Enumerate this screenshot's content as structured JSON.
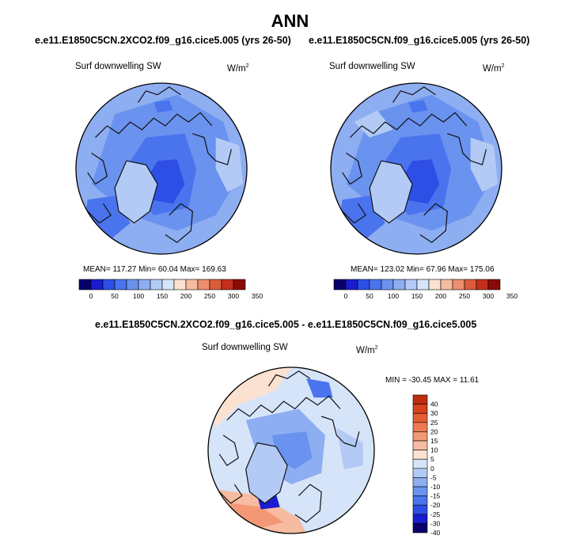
{
  "page": {
    "title": "ANN"
  },
  "colors": {
    "abs_scale": [
      "#08006b",
      "#1a1ccf",
      "#2e4fe6",
      "#4a74ee",
      "#6a92ef",
      "#8eaef2",
      "#b2caf5",
      "#d6e4fa",
      "#fbe2d0",
      "#f6bba0",
      "#ec8f6e",
      "#dc5c3c",
      "#c32f1a",
      "#8b0a05"
    ],
    "diff_scale": [
      "#08006b",
      "#1a1ccf",
      "#2e4fe6",
      "#4a74ee",
      "#6a92ef",
      "#8eaef2",
      "#b2caf5",
      "#d6e4fa",
      "#fbe2d0",
      "#f6bba0",
      "#f39875",
      "#ef7a52",
      "#e45d30",
      "#d8431c",
      "#bf2e0e"
    ]
  },
  "chart_data": [
    {
      "type": "heatmap",
      "projection": "north-polar-stereographic",
      "title": "e.e11.E1850C5CN.2XCO2.f09_g16.cice5.005 (yrs 26-50)",
      "variable": "Surf downwelling SW",
      "units": "W/m²",
      "stats_text": "MEAN= 117.27  Min=  60.04  Max= 169.63",
      "mean": 117.27,
      "min": 60.04,
      "max": 169.63,
      "colorbar_ticks": [
        "0",
        "50",
        "100",
        "150",
        "200",
        "250",
        "300",
        "350"
      ],
      "colorbar_levels": [
        0,
        25,
        50,
        75,
        100,
        125,
        150,
        175,
        200,
        225,
        250,
        275,
        300,
        325,
        350
      ]
    },
    {
      "type": "heatmap",
      "projection": "north-polar-stereographic",
      "title": "e.e11.E1850C5CN.f09_g16.cice5.005 (yrs 26-50)",
      "variable": "Surf downwelling SW",
      "units": "W/m²",
      "stats_text": "MEAN= 123.02  Min=  67.96  Max= 175.06",
      "mean": 123.02,
      "min": 67.96,
      "max": 175.06,
      "colorbar_ticks": [
        "0",
        "50",
        "100",
        "150",
        "200",
        "250",
        "300",
        "350"
      ],
      "colorbar_levels": [
        0,
        25,
        50,
        75,
        100,
        125,
        150,
        175,
        200,
        225,
        250,
        275,
        300,
        325,
        350
      ]
    },
    {
      "type": "heatmap",
      "projection": "north-polar-stereographic",
      "title": "e.e11.E1850C5CN.2XCO2.f09_g16.cice5.005 - e.e11.E1850C5CN.f09_g16.cice5.005",
      "variable": "Surf downwelling SW",
      "units": "W/m²",
      "stats_text": "MIN = -30.45 MAX =  11.61",
      "min": -30.45,
      "max": 11.61,
      "colorbar_ticks": [
        "40",
        "30",
        "25",
        "20",
        "15",
        "10",
        "5",
        "0",
        "-5",
        "-10",
        "-15",
        "-20",
        "-25",
        "-30",
        "-40"
      ],
      "colorbar_levels": [
        -40,
        -30,
        -25,
        -20,
        -15,
        -10,
        -5,
        0,
        5,
        10,
        15,
        20,
        25,
        30,
        40
      ]
    }
  ]
}
